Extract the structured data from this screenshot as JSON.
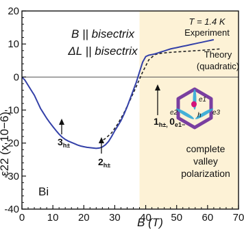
{
  "chart_data": {
    "type": "line",
    "xlabel": "B (T)",
    "ylabel": "ε22 (x 10−6)",
    "xlim": [
      0,
      70
    ],
    "ylim": [
      -40,
      20
    ],
    "xticks": [
      0,
      10,
      20,
      30,
      40,
      50,
      60,
      70
    ],
    "yticks": [
      20,
      10,
      0,
      -10,
      -20,
      -30,
      -40
    ],
    "annotations": {
      "orientation_line1": "B || bisectrix",
      "orientation_line2": "ΔL || bisectrix",
      "temperature": "T = 1.4 K",
      "experiment": "Experiment",
      "theory": "Theory",
      "theory_sub": "(quadratic)",
      "material": "Bi",
      "polarization_line1": "complete",
      "polarization_line2": "valley",
      "polarization_line3": "polarization",
      "marker_3": "3",
      "marker_3_sub": "h±",
      "marker_2": "2",
      "marker_2_sub": "h±",
      "marker_1": "1",
      "marker_1_sub": "h±, ",
      "marker_1_b": "0",
      "marker_1_b_sub": "e1−",
      "inset_e1": "e1",
      "inset_e2": "e2",
      "inset_e3": "e3",
      "inset_h": "h"
    },
    "series": [
      {
        "values_x": [
          0,
          1,
          2,
          3,
          4,
          5,
          6,
          7,
          8,
          9,
          10,
          11,
          12,
          13,
          14,
          15,
          16,
          17,
          18,
          19,
          20,
          21,
          22,
          23,
          24,
          25,
          26,
          27,
          28,
          29,
          30,
          31,
          32,
          33,
          34,
          35,
          36,
          37,
          38,
          39,
          40,
          41,
          42,
          43,
          44,
          45,
          46,
          47,
          48,
          49,
          50,
          51,
          52,
          53,
          54,
          55,
          56,
          57,
          58,
          59,
          60,
          61,
          62
        ],
        "values_y": [
          0,
          -1,
          -2.5,
          -4,
          -5.5,
          -7.5,
          -9.5,
          -11,
          -12.5,
          -13.8,
          -15,
          -16.2,
          -17.3,
          -18.2,
          -18.9,
          -19.4,
          -19.8,
          -20.2,
          -20.6,
          -20.9,
          -21.1,
          -21.3,
          -21.4,
          -21.5,
          -21.6,
          -21.5,
          -21.2,
          -20.5,
          -19.5,
          -18,
          -16.3,
          -14.8,
          -13.2,
          -11.2,
          -9,
          -6.5,
          -4,
          -1.5,
          1.5,
          4.5,
          6.2,
          6.6,
          6.8,
          7,
          7.3,
          7.6,
          7.9,
          8.2,
          8.5,
          8.7,
          8.9,
          9.1,
          9.3,
          9.5,
          9.7,
          9.9,
          10.1,
          10.3,
          10.5,
          10.7,
          10.9,
          11.1,
          11.3
        ]
      },
      {
        "values_x": [
          25,
          27,
          29,
          31,
          33,
          35,
          37,
          39,
          41,
          43,
          45,
          47,
          50,
          55,
          60,
          64
        ],
        "values_y": [
          -19.8,
          -18.6,
          -16.9,
          -14.2,
          -10.8,
          -6.9,
          -2.8,
          1.5,
          5.2,
          6.8,
          7.2,
          7.4,
          7.6,
          7.9,
          8.2,
          8.5
        ]
      }
    ]
  },
  "colors": {
    "experiment": "#3340a8",
    "theory": "#222222",
    "shade": "#fdf2d6",
    "polarization": "#e87813",
    "hexagon": "#7a3fa0",
    "ellipse": "#30a8d8",
    "hole": "#d4137a"
  }
}
